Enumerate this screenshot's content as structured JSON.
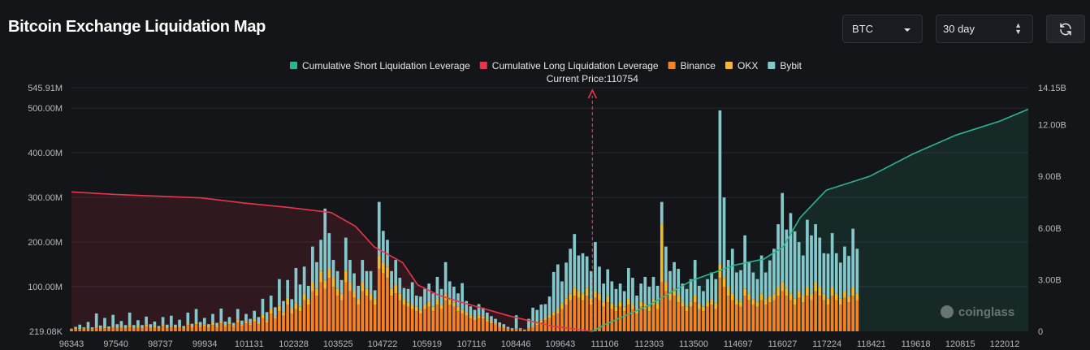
{
  "header": {
    "title": "Bitcoin Exchange Liquidation Map",
    "coin_select": "BTC",
    "range_select": "30 day",
    "refresh_icon": "refresh-icon"
  },
  "colors": {
    "short": "#2bb58d",
    "long": "#e8354a",
    "binance": "#f58323",
    "okx": "#f5b829",
    "bybit": "#85c8cc"
  },
  "chart_data": {
    "type": "bar",
    "title": "Bitcoin Exchange Liquidation Map",
    "current_price_label": "Current Price:110754",
    "current_price": 110754,
    "watermark": "coinglass",
    "legend": [
      {
        "key": "short",
        "label": "Cumulative Short Liquidation Leverage"
      },
      {
        "key": "long",
        "label": "Cumulative Long Liquidation Leverage"
      },
      {
        "key": "binance",
        "label": "Binance"
      },
      {
        "key": "okx",
        "label": "OKX"
      },
      {
        "key": "bybit",
        "label": "Bybit"
      }
    ],
    "x_min": 96343,
    "x_max": 122812,
    "x_ticks": [
      "96343",
      "97540",
      "98737",
      "99934",
      "101131",
      "102328",
      "103525",
      "104722",
      "105919",
      "107116",
      "108446",
      "109643",
      "111106",
      "112303",
      "113500",
      "114697",
      "116027",
      "117224",
      "118421",
      "119618",
      "120815",
      "122012"
    ],
    "left_axis": {
      "min": 0,
      "max": 545.91,
      "unit": "M",
      "ticks": [
        "219.08K",
        "100.00M",
        "200.00M",
        "300.00M",
        "400.00M",
        "500.00M",
        "545.91M"
      ],
      "tick_values": [
        0,
        100,
        200,
        300,
        400,
        500,
        545.91
      ]
    },
    "right_axis": {
      "min": 0,
      "max": 14.15,
      "unit": "B",
      "ticks": [
        "0",
        "3.00B",
        "6.00B",
        "9.00B",
        "12.00B",
        "14.15B"
      ],
      "tick_values": [
        0,
        3,
        6,
        9,
        12,
        14.15
      ]
    },
    "cumulative_long": {
      "x": [
        96343,
        97540,
        98737,
        99934,
        101131,
        102328,
        103525,
        104200,
        104722,
        105500,
        105919,
        106500,
        107116,
        108446,
        109643,
        110754
      ],
      "y": [
        8.1,
        7.95,
        7.85,
        7.75,
        7.45,
        7.2,
        6.9,
        6.1,
        4.9,
        4.0,
        2.7,
        2.1,
        1.7,
        0.9,
        0.3,
        0
      ]
    },
    "cumulative_short": {
      "x": [
        110754,
        111106,
        112303,
        113500,
        114697,
        115500,
        116027,
        116500,
        117224,
        118421,
        119618,
        120815,
        122012,
        122812
      ],
      "y": [
        0,
        0.4,
        1.5,
        2.95,
        3.85,
        4.2,
        4.9,
        6.6,
        8.2,
        9.0,
        10.3,
        11.4,
        12.2,
        12.9
      ]
    },
    "bars_x_start": 96343,
    "bars_x_step": 115,
    "bars": [
      [
        3,
        1,
        2
      ],
      [
        5,
        2,
        3
      ],
      [
        4,
        1,
        10
      ],
      [
        6,
        1,
        2
      ],
      [
        4,
        2,
        15
      ],
      [
        5,
        1,
        3
      ],
      [
        8,
        2,
        30
      ],
      [
        6,
        2,
        5
      ],
      [
        7,
        3,
        20
      ],
      [
        5,
        2,
        4
      ],
      [
        9,
        3,
        25
      ],
      [
        6,
        2,
        8
      ],
      [
        8,
        3,
        12
      ],
      [
        7,
        2,
        5
      ],
      [
        10,
        4,
        28
      ],
      [
        6,
        2,
        6
      ],
      [
        8,
        3,
        14
      ],
      [
        7,
        2,
        5
      ],
      [
        11,
        4,
        18
      ],
      [
        8,
        2,
        6
      ],
      [
        9,
        3,
        10
      ],
      [
        6,
        2,
        4
      ],
      [
        12,
        4,
        16
      ],
      [
        7,
        2,
        6
      ],
      [
        10,
        3,
        22
      ],
      [
        8,
        2,
        5
      ],
      [
        9,
        3,
        14
      ],
      [
        6,
        2,
        4
      ],
      [
        14,
        4,
        24
      ],
      [
        8,
        3,
        6
      ],
      [
        16,
        4,
        30
      ],
      [
        10,
        3,
        8
      ],
      [
        12,
        4,
        14
      ],
      [
        9,
        2,
        5
      ],
      [
        14,
        5,
        20
      ],
      [
        10,
        3,
        6
      ],
      [
        18,
        5,
        28
      ],
      [
        11,
        3,
        8
      ],
      [
        16,
        4,
        12
      ],
      [
        10,
        3,
        6
      ],
      [
        20,
        6,
        24
      ],
      [
        12,
        4,
        8
      ],
      [
        18,
        5,
        16
      ],
      [
        14,
        4,
        10
      ],
      [
        22,
        6,
        18
      ],
      [
        16,
        4,
        12
      ],
      [
        30,
        8,
        35
      ],
      [
        20,
        5,
        18
      ],
      [
        40,
        10,
        30
      ],
      [
        28,
        6,
        20
      ],
      [
        45,
        12,
        60
      ],
      [
        35,
        8,
        25
      ],
      [
        60,
        15,
        40
      ],
      [
        40,
        10,
        22
      ],
      [
        50,
        12,
        80
      ],
      [
        45,
        10,
        50
      ],
      [
        70,
        15,
        60
      ],
      [
        60,
        12,
        30
      ],
      [
        90,
        20,
        80
      ],
      [
        80,
        15,
        60
      ],
      [
        110,
        25,
        70
      ],
      [
        95,
        20,
        160
      ],
      [
        120,
        20,
        80
      ],
      [
        100,
        20,
        40
      ],
      [
        80,
        15,
        40
      ],
      [
        70,
        15,
        30
      ],
      [
        110,
        25,
        75
      ],
      [
        90,
        20,
        50
      ],
      [
        75,
        15,
        40
      ],
      [
        60,
        12,
        30
      ],
      [
        90,
        20,
        50
      ],
      [
        80,
        15,
        40
      ],
      [
        70,
        15,
        50
      ],
      [
        60,
        12,
        20
      ],
      [
        140,
        30,
        120
      ],
      [
        130,
        25,
        70
      ],
      [
        120,
        25,
        60
      ],
      [
        80,
        15,
        40
      ],
      [
        85,
        20,
        55
      ],
      [
        70,
        15,
        35
      ],
      [
        60,
        12,
        25
      ],
      [
        55,
        10,
        30
      ],
      [
        50,
        10,
        50
      ],
      [
        45,
        10,
        25
      ],
      [
        40,
        8,
        30
      ],
      [
        50,
        10,
        35
      ],
      [
        55,
        12,
        40
      ],
      [
        45,
        10,
        30
      ],
      [
        60,
        12,
        50
      ],
      [
        50,
        10,
        35
      ],
      [
        70,
        15,
        70
      ],
      [
        60,
        12,
        40
      ],
      [
        55,
        10,
        35
      ],
      [
        45,
        10,
        30
      ],
      [
        40,
        8,
        60
      ],
      [
        35,
        8,
        25
      ],
      [
        30,
        6,
        20
      ],
      [
        25,
        5,
        18
      ],
      [
        30,
        6,
        25
      ],
      [
        28,
        5,
        20
      ],
      [
        22,
        5,
        15
      ],
      [
        18,
        4,
        12
      ],
      [
        15,
        3,
        10
      ],
      [
        10,
        2,
        8
      ],
      [
        8,
        2,
        6
      ],
      [
        5,
        1,
        4
      ],
      [
        3,
        1,
        3
      ],
      [
        5,
        1,
        30
      ],
      [
        4,
        1,
        2
      ],
      [
        2,
        1,
        1
      ],
      [
        6,
        2,
        20
      ],
      [
        10,
        3,
        40
      ],
      [
        14,
        4,
        30
      ],
      [
        20,
        5,
        35
      ],
      [
        25,
        6,
        30
      ],
      [
        30,
        8,
        40
      ],
      [
        35,
        8,
        90
      ],
      [
        40,
        10,
        100
      ],
      [
        50,
        12,
        50
      ],
      [
        60,
        14,
        80
      ],
      [
        70,
        15,
        100
      ],
      [
        80,
        18,
        120
      ],
      [
        75,
        15,
        80
      ],
      [
        70,
        15,
        90
      ],
      [
        80,
        18,
        70
      ],
      [
        60,
        15,
        60
      ],
      [
        75,
        15,
        110
      ],
      [
        70,
        15,
        60
      ],
      [
        55,
        12,
        40
      ],
      [
        65,
        14,
        60
      ],
      [
        50,
        12,
        50
      ],
      [
        45,
        10,
        40
      ],
      [
        55,
        12,
        40
      ],
      [
        45,
        10,
        35
      ],
      [
        60,
        12,
        70
      ],
      [
        50,
        10,
        60
      ],
      [
        40,
        10,
        30
      ],
      [
        55,
        12,
        40
      ],
      [
        50,
        12,
        60
      ],
      [
        45,
        10,
        45
      ],
      [
        60,
        12,
        50
      ],
      [
        50,
        12,
        40
      ],
      [
        110,
        130,
        50
      ],
      [
        90,
        20,
        80
      ],
      [
        70,
        15,
        50
      ],
      [
        80,
        15,
        60
      ],
      [
        65,
        15,
        60
      ],
      [
        55,
        12,
        40
      ],
      [
        45,
        10,
        40
      ],
      [
        55,
        12,
        50
      ],
      [
        65,
        15,
        80
      ],
      [
        50,
        12,
        40
      ],
      [
        45,
        10,
        35
      ],
      [
        55,
        12,
        50
      ],
      [
        60,
        12,
        60
      ],
      [
        50,
        12,
        55
      ],
      [
        120,
        30,
        345
      ],
      [
        100,
        20,
        180
      ],
      [
        80,
        20,
        60
      ],
      [
        70,
        15,
        100
      ],
      [
        60,
        12,
        60
      ],
      [
        55,
        12,
        70
      ],
      [
        80,
        15,
        120
      ],
      [
        70,
        15,
        70
      ],
      [
        60,
        12,
        60
      ],
      [
        55,
        12,
        50
      ],
      [
        70,
        15,
        85
      ],
      [
        60,
        12,
        60
      ],
      [
        65,
        14,
        80
      ],
      [
        70,
        15,
        100
      ],
      [
        80,
        20,
        140
      ],
      [
        90,
        20,
        200
      ],
      [
        80,
        18,
        130
      ],
      [
        70,
        15,
        180
      ],
      [
        60,
        14,
        150
      ],
      [
        75,
        15,
        110
      ],
      [
        65,
        15,
        90
      ],
      [
        80,
        20,
        150
      ],
      [
        70,
        15,
        130
      ],
      [
        90,
        20,
        130
      ],
      [
        80,
        20,
        110
      ],
      [
        70,
        15,
        90
      ],
      [
        60,
        14,
        100
      ],
      [
        80,
        20,
        120
      ],
      [
        70,
        15,
        90
      ],
      [
        60,
        14,
        80
      ],
      [
        75,
        15,
        100
      ],
      [
        65,
        14,
        90
      ],
      [
        80,
        20,
        130
      ],
      [
        70,
        15,
        100
      ]
    ]
  }
}
